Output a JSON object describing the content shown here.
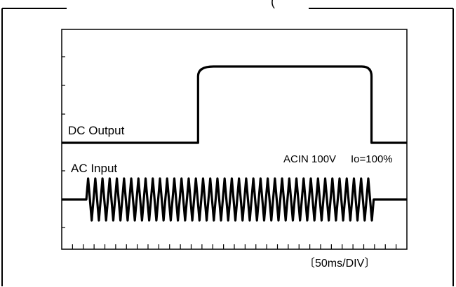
{
  "chart_data": {
    "type": "line",
    "header_fragment": "(",
    "xlabel": "",
    "ylabel": "",
    "x_unit_label": "〔50ms/DIV〕",
    "x_unit": "ms",
    "ms_per_div": 50,
    "x_range_ms": [
      0,
      800
    ],
    "minor_ticks_per_div": 2,
    "grid": false,
    "annotation": "ACIN 100V",
    "annotation_io": "Io=100%",
    "series": [
      {
        "name": "DC Output",
        "kind": "step",
        "levels": [
          "low",
          "high",
          "low"
        ],
        "rise_ms": 316,
        "fall_ms": 718
      },
      {
        "name": "AC Input",
        "kind": "sine_burst",
        "on_ms": 57,
        "off_ms": 723,
        "cycles": 40
      }
    ]
  }
}
